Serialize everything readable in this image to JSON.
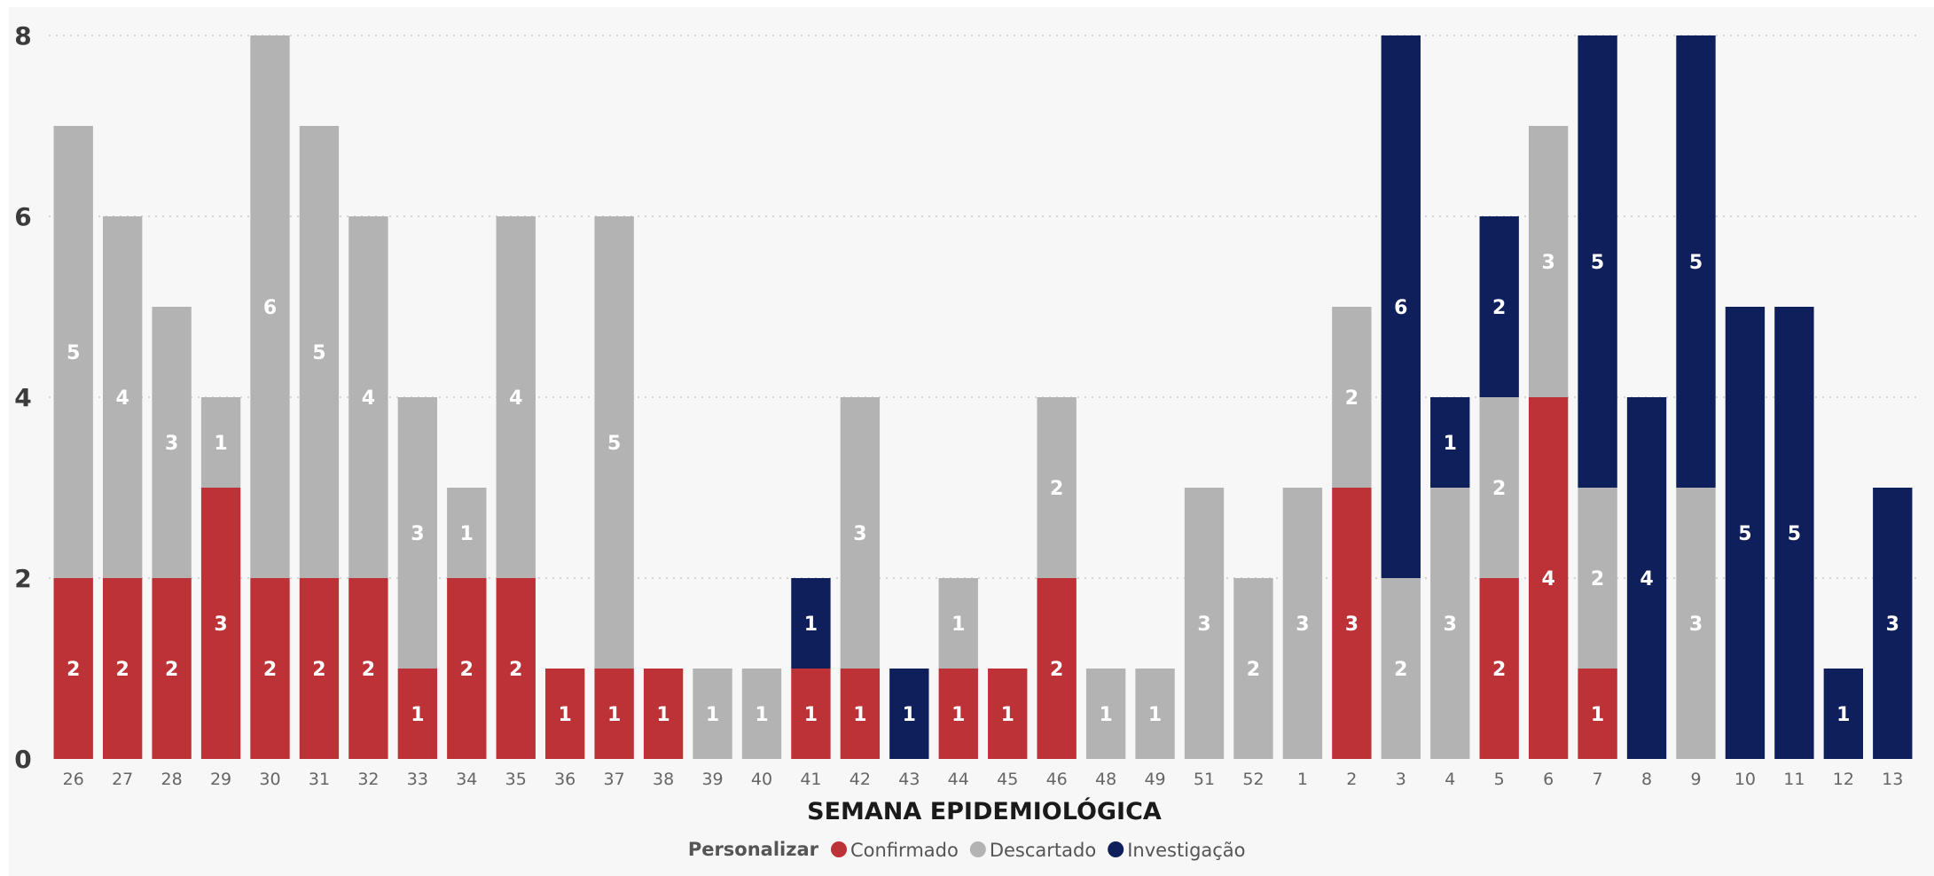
{
  "chart_data": {
    "type": "bar",
    "stacked": true,
    "xlabel": "SEMANA EPIDEMIOLÓGICA",
    "ylabel": "",
    "ylim": [
      0,
      8
    ],
    "yticks": [
      0,
      2,
      4,
      6,
      8
    ],
    "grid": true,
    "legend_position": "bottom",
    "legend_title": "Personalizar",
    "categories": [
      "26",
      "27",
      "28",
      "29",
      "30",
      "31",
      "32",
      "33",
      "34",
      "35",
      "36",
      "37",
      "38",
      "39",
      "40",
      "41",
      "42",
      "43",
      "44",
      "45",
      "46",
      "48",
      "49",
      "51",
      "52",
      "1",
      "2",
      "3",
      "4",
      "5",
      "6",
      "7",
      "8",
      "9",
      "10",
      "11",
      "12",
      "13"
    ],
    "series": [
      {
        "name": "Confirmado",
        "color": "#bd3236",
        "values": [
          2,
          2,
          2,
          3,
          2,
          2,
          2,
          1,
          2,
          2,
          1,
          1,
          1,
          0,
          0,
          1,
          1,
          0,
          1,
          1,
          2,
          0,
          0,
          0,
          0,
          0,
          3,
          0,
          0,
          2,
          4,
          1,
          0,
          0,
          0,
          0,
          0,
          0
        ]
      },
      {
        "name": "Descartado",
        "color": "#b3b3b3",
        "values": [
          5,
          4,
          3,
          1,
          6,
          5,
          4,
          3,
          1,
          4,
          0,
          5,
          0,
          1,
          1,
          0,
          3,
          0,
          1,
          0,
          2,
          1,
          1,
          3,
          2,
          3,
          2,
          2,
          3,
          2,
          3,
          2,
          0,
          3,
          0,
          0,
          0,
          0
        ]
      },
      {
        "name": "Investigação",
        "color": "#0f1f5b",
        "values": [
          0,
          0,
          0,
          0,
          0,
          0,
          0,
          0,
          0,
          0,
          0,
          0,
          0,
          0,
          0,
          1,
          0,
          1,
          0,
          0,
          0,
          0,
          0,
          0,
          0,
          0,
          0,
          6,
          1,
          2,
          0,
          5,
          4,
          5,
          5,
          5,
          1,
          3
        ]
      }
    ]
  }
}
